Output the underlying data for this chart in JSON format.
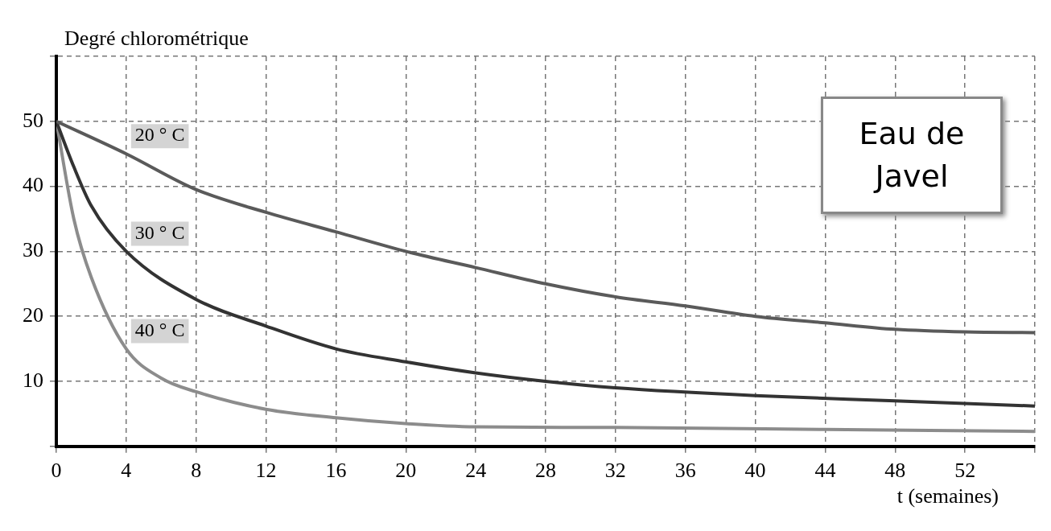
{
  "chart_data": {
    "type": "line",
    "xlabel": "t (semaines)",
    "ylabel": "Degré chlorométrique",
    "annotations": [
      "Eau de Javel"
    ],
    "xlim": [
      0,
      56
    ],
    "ylim": [
      0,
      60
    ],
    "xticks": [
      0,
      4,
      8,
      12,
      16,
      20,
      24,
      28,
      32,
      36,
      40,
      44,
      48,
      52,
      {
        "value": 56,
        "label": null
      }
    ],
    "yticks": [
      {
        "value": 0,
        "label": null
      },
      10,
      20,
      30,
      40,
      50,
      {
        "value": 60,
        "label": null
      }
    ],
    "grid": true,
    "marker": "none",
    "line_style": "solid",
    "series": [
      {
        "name": "20 ° C",
        "color": "#5a5a5a",
        "x": [
          0,
          4,
          8,
          12,
          16,
          20,
          24,
          28,
          32,
          36,
          40,
          44,
          48,
          52,
          56
        ],
        "values": [
          50,
          45,
          39.5,
          36,
          33,
          30,
          27.5,
          25,
          23,
          21.6,
          20,
          19,
          18,
          17.6,
          17.5
        ]
      },
      {
        "name": "30 ° C",
        "color": "#333333",
        "x": [
          0,
          1,
          2,
          4,
          8,
          12,
          16,
          20,
          24,
          28,
          32,
          40,
          48,
          56
        ],
        "values": [
          50,
          43,
          37,
          30,
          22.6,
          18.5,
          15,
          13,
          11.3,
          10,
          9,
          7.8,
          7,
          6.2
        ]
      },
      {
        "name": "40 ° C",
        "color": "#8c8c8c",
        "x": [
          0,
          1,
          2,
          4,
          6,
          8,
          12,
          16,
          20,
          24,
          32,
          44,
          56
        ],
        "values": [
          50,
          35,
          26,
          15,
          10.5,
          8.4,
          5.7,
          4.4,
          3.5,
          3,
          2.9,
          2.6,
          2.3
        ]
      }
    ]
  }
}
